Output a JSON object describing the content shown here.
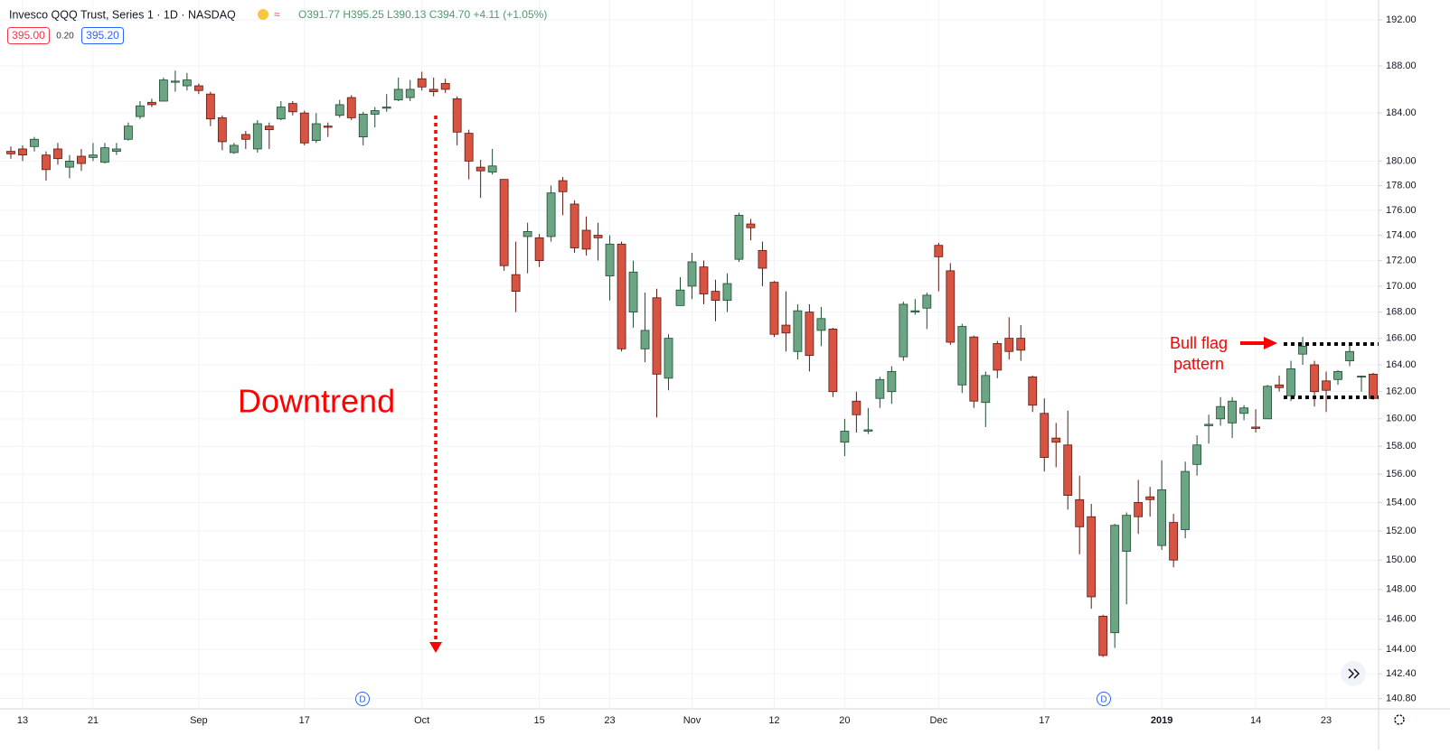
{
  "header": {
    "symbol": "Invesco QQQ Trust, Series 1 · 1D · NASDAQ",
    "ohlc": "O391.77 H395.25 L390.13 C394.70 +4.11 (+1.05%)",
    "sell_price": "395.00",
    "spread": "0.20",
    "buy_price": "395.20"
  },
  "chart_data": {
    "type": "candlestick",
    "up_color": "#6ba583",
    "down_color": "#d75442",
    "log_scale": true,
    "grid": true,
    "annotations": [
      "Downtrend",
      "Bull flag",
      "pattern"
    ],
    "events": [
      "D",
      "D"
    ],
    "categories": [
      null,
      "13",
      null,
      null,
      null,
      null,
      null,
      "21",
      null,
      null,
      null,
      null,
      null,
      null,
      null,
      null,
      "Sep",
      null,
      null,
      null,
      null,
      null,
      null,
      null,
      null,
      "17",
      null,
      null,
      null,
      null,
      null,
      null,
      null,
      null,
      null,
      "Oct",
      null,
      null,
      null,
      null,
      null,
      null,
      null,
      null,
      null,
      "15",
      null,
      null,
      null,
      null,
      null,
      "23",
      null,
      null,
      null,
      null,
      null,
      null,
      "Nov",
      null,
      null,
      null,
      null,
      null,
      null,
      "12",
      null,
      null,
      null,
      null,
      null,
      "20",
      null,
      null,
      null,
      null,
      null,
      null,
      null,
      "Dec",
      null,
      null,
      null,
      null,
      null,
      null,
      null,
      null,
      "17",
      null,
      null,
      null,
      null,
      null,
      null,
      null,
      null,
      null,
      "2019",
      null,
      null,
      null,
      null,
      null,
      null,
      null,
      "14",
      null,
      null,
      null,
      null,
      null,
      "23",
      null,
      null,
      null,
      null
    ],
    "open": [
      180.8,
      181,
      181.2,
      180.5,
      181,
      179.5,
      180.4,
      180.3,
      179.9,
      180.8,
      181.8,
      183.7,
      184.9,
      185,
      186.6,
      186.3,
      186.3,
      185.6,
      183.6,
      180.7,
      182.2,
      181,
      182.9,
      183.5,
      184.8,
      184,
      181.7,
      182.9,
      183.8,
      185.3,
      182,
      183.9,
      184.4,
      185.1,
      185.3,
      186.9,
      186,
      186.5,
      185.2,
      182.3,
      179.5,
      179.1,
      178.5,
      170.9,
      173.9,
      173.8,
      173.9,
      178.4,
      176.5,
      174.4,
      174,
      170.8,
      173.3,
      168,
      165.2,
      169.1,
      163,
      168.5,
      170,
      171.5,
      169.6,
      168.9,
      172.1,
      174.9,
      172.8,
      170.3,
      167,
      165,
      168,
      166.6,
      166.7,
      158.3,
      161.3,
      159.1,
      161.5,
      162,
      164.6,
      168,
      168.3,
      173.2,
      171.2,
      162.5,
      166.1,
      161.2,
      165.6,
      166,
      166,
      163.1,
      160.4,
      158.6,
      158.1,
      154.2,
      153,
      146.2,
      145.1,
      150.6,
      154,
      154.4,
      151,
      152.6,
      152.1,
      156.7,
      159.5,
      160,
      159.7,
      160.4,
      159.4,
      160,
      162.5,
      161.7,
      164.8,
      164,
      162.8,
      162.9,
      164.3,
      163.1,
      163.3
    ],
    "high": [
      181.2,
      181.3,
      182,
      180.8,
      181.5,
      180.5,
      181,
      181.5,
      181.5,
      181.5,
      183.2,
      185,
      185.2,
      187,
      187.6,
      187.4,
      186.5,
      185.8,
      183.8,
      181.5,
      182.5,
      183.4,
      183.2,
      185,
      185,
      184.2,
      184,
      183.2,
      185.1,
      185.5,
      184.1,
      184.5,
      185.6,
      187,
      186.8,
      187.5,
      187,
      186.9,
      185.4,
      182.6,
      180.1,
      181,
      178.5,
      173.5,
      175,
      174.1,
      178,
      178.7,
      176.8,
      175.5,
      175,
      174,
      173.5,
      172,
      169.5,
      169.8,
      166.3,
      170.7,
      172.6,
      172,
      170.5,
      171,
      175.8,
      175.3,
      173.5,
      170.4,
      169.6,
      168.6,
      168.6,
      168.4,
      166.8,
      160,
      162,
      160.8,
      163.1,
      163.9,
      168.8,
      169,
      169.5,
      173.4,
      171.8,
      167.1,
      166.2,
      163.5,
      165.8,
      167.6,
      167,
      163.2,
      161.5,
      159.7,
      160.6,
      155.9,
      153.9,
      146.3,
      152.5,
      153.3,
      155.6,
      155.1,
      157,
      153.2,
      156.9,
      158.8,
      160.3,
      161.6,
      161.6,
      161,
      160.7,
      162.5,
      163.2,
      164.3,
      166.1,
      164.3,
      163.5,
      163.6,
      165.6,
      163.2,
      163.4
    ],
    "low": [
      180.2,
      180,
      180.8,
      178.4,
      179.7,
      178.6,
      179.2,
      180,
      179.8,
      180.5,
      181.7,
      183.5,
      184.5,
      185,
      185.8,
      185.9,
      185.6,
      182.9,
      180.9,
      180.6,
      181,
      180.7,
      181,
      183.4,
      183.8,
      181.3,
      181.5,
      182,
      183.6,
      183.4,
      181.3,
      182.8,
      184.1,
      185,
      185,
      185.9,
      185.4,
      185.7,
      181.3,
      178.5,
      177,
      178.9,
      171.2,
      168,
      171,
      171.5,
      173.5,
      175.6,
      172.6,
      172.4,
      172,
      168.9,
      165,
      166.8,
      164.2,
      160.1,
      162.1,
      168.5,
      169,
      168.6,
      167.3,
      168,
      171.9,
      173.6,
      170,
      166.1,
      165,
      164.4,
      163.5,
      165.4,
      161.6,
      157.3,
      159,
      158.9,
      160.8,
      161.1,
      164.3,
      167.8,
      166.7,
      169.6,
      165.5,
      161.9,
      160.8,
      159.4,
      163,
      164.4,
      164.3,
      160.5,
      156.2,
      156.5,
      153.5,
      150.4,
      146.7,
      143.5,
      144.1,
      147,
      151.8,
      153,
      150.7,
      149.5,
      151.5,
      155.9,
      158.2,
      159.5,
      158.6,
      159.9,
      159,
      160,
      162,
      161.3,
      164,
      160.9,
      160.5,
      162.5,
      163.9,
      162,
      161.4
    ],
    "close": [
      180.6,
      180.5,
      181.8,
      179.3,
      180.2,
      180,
      179.8,
      180.5,
      181.1,
      181,
      182.9,
      184.6,
      184.7,
      186.8,
      186.7,
      186.8,
      185.9,
      183.5,
      181.6,
      181.3,
      181.8,
      183.1,
      182.6,
      184.5,
      184.1,
      181.5,
      183.1,
      182.8,
      184.7,
      183.6,
      183.9,
      184.2,
      184.5,
      186,
      186,
      186.2,
      185.8,
      186,
      182.4,
      180,
      179.2,
      179.6,
      171.6,
      169.6,
      174.3,
      172,
      177.4,
      177.5,
      173,
      172.9,
      173.8,
      173.3,
      165.2,
      171.1,
      166.6,
      163.3,
      166,
      169.7,
      171.9,
      169.4,
      168.9,
      170.2,
      175.6,
      174.6,
      171.4,
      166.3,
      166.4,
      168.1,
      164.7,
      167.5,
      162,
      159.1,
      160.3,
      159.2,
      162.9,
      163.5,
      168.6,
      168.1,
      169.3,
      172.3,
      165.7,
      166.9,
      161.3,
      163.2,
      163.6,
      165,
      165.1,
      161,
      157.2,
      158.3,
      154.5,
      152.3,
      147.5,
      143.6,
      152.4,
      153.1,
      153,
      154.2,
      154.9,
      150,
      156.2,
      158.1,
      159.6,
      160.9,
      161.3,
      160.8,
      159.3,
      162.4,
      162.3,
      163.7,
      165.4,
      162,
      162.1,
      163.5,
      165,
      163.15,
      161.5
    ],
    "ylim": [
      140.14,
      193.75
    ],
    "yticks": [
      {
        "value": 192,
        "label": "192.00"
      },
      {
        "value": 188,
        "label": "188.00"
      },
      {
        "value": 184,
        "label": "184.00"
      },
      {
        "value": 180,
        "label": "180.00"
      },
      {
        "value": 178,
        "label": "178.00"
      },
      {
        "value": 176,
        "label": "176.00"
      },
      {
        "value": 174,
        "label": "174.00"
      },
      {
        "value": 172,
        "label": "172.00"
      },
      {
        "value": 170,
        "label": "170.00"
      },
      {
        "value": 168,
        "label": "168.00"
      },
      {
        "value": 166,
        "label": "166.00"
      },
      {
        "value": 164,
        "label": "164.00"
      },
      {
        "value": 162,
        "label": "162.00"
      },
      {
        "value": 160,
        "label": "160.00"
      },
      {
        "value": 158,
        "label": "158.00"
      },
      {
        "value": 156,
        "label": "156.00"
      },
      {
        "value": 154,
        "label": "154.00"
      },
      {
        "value": 152,
        "label": "152.00"
      },
      {
        "value": 150,
        "label": "150.00"
      },
      {
        "value": 148,
        "label": "148.00"
      },
      {
        "value": 146,
        "label": "146.00"
      },
      {
        "value": 144,
        "label": "144.00"
      },
      {
        "value": 142.4,
        "label": "142.40"
      },
      {
        "value": 140.8,
        "label": "140.80"
      }
    ]
  }
}
